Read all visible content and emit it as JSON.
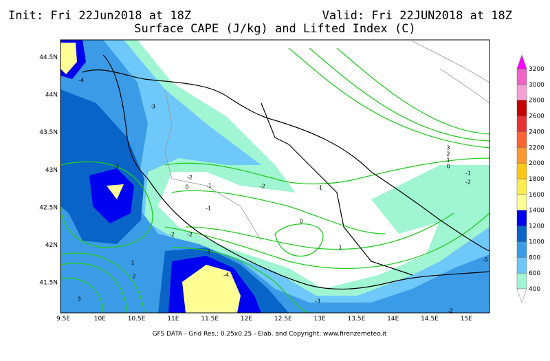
{
  "header": {
    "init": "Init: Fri 22Jun2018 at 18Z",
    "valid": "Valid: Fri 22JUN2018 at 18Z",
    "title": "Surface CAPE (J/kg) and Lifted Index (C)"
  },
  "map": {
    "lon_labels": [
      "9.5E",
      "10E",
      "10.5E",
      "11E",
      "11.5E",
      "12E",
      "12.5E",
      "13E",
      "13.5E",
      "14E",
      "14.5E",
      "15E"
    ],
    "lat_labels": [
      "44.5N",
      "44N",
      "43.5N",
      "43N",
      "42.5N",
      "42N",
      "41.5N"
    ],
    "contour_labels": [
      "-4",
      "-3",
      "-3",
      "-2",
      "-1",
      "0",
      "-1",
      "-2",
      "-1",
      "0",
      "1",
      "-2",
      "-2",
      "-3",
      "-4",
      "-3",
      "3",
      "2",
      "1",
      "0",
      "-1",
      "-2",
      "1",
      "2",
      "3",
      "-5",
      "-2"
    ]
  },
  "colorbar": {
    "labels": [
      400,
      600,
      800,
      1000,
      1200,
      1400,
      1600,
      1800,
      2000,
      2200,
      2400,
      2600,
      2800,
      3000,
      3200
    ],
    "colors": [
      "#a0f5d2",
      "#6ec8fa",
      "#3c9be6",
      "#0a64c8",
      "#0000f0",
      "#ffff96",
      "#ffeb50",
      "#ffc814",
      "#ff9632",
      "#ff6432",
      "#e63232",
      "#c80000",
      "#f5a0d2",
      "#f064c8"
    ],
    "over_color": "#ff00ff",
    "under_color": "#ffffff"
  },
  "footer": "GFS DATA - Grid Res.: 0.25x0.25 - Elab. and Copyright: www.firenzemeteo.it"
}
